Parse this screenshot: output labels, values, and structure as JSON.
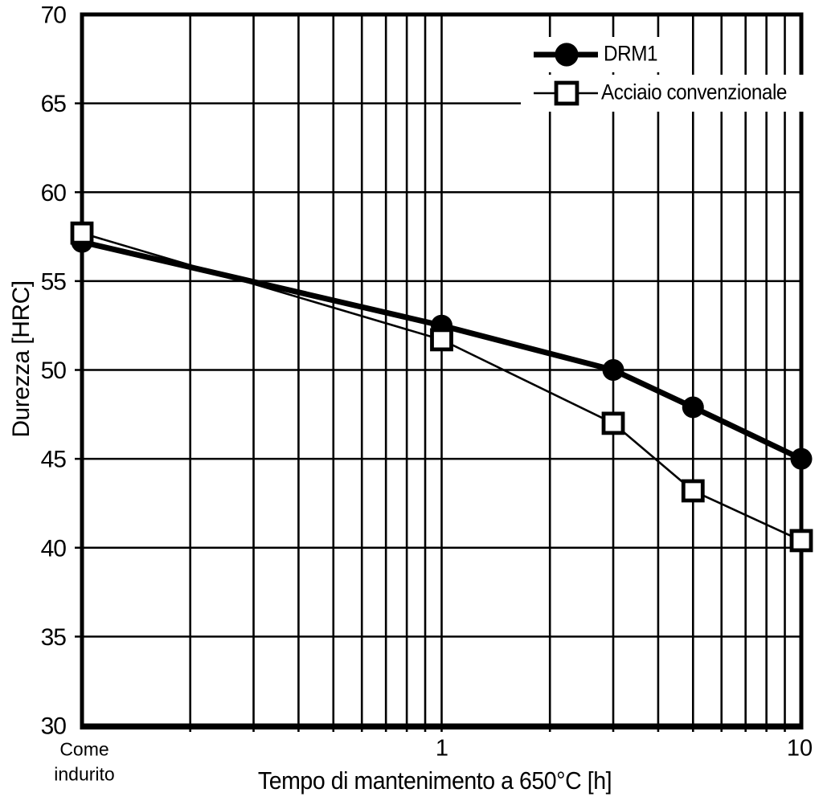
{
  "figure": {
    "background": "#ffffff",
    "foreground": "#000000"
  },
  "chart_data": {
    "type": "line",
    "title": "",
    "xlabel": "Tempo di mantenimento a 650°C [h]",
    "ylabel": "Durezza [HRC]",
    "x_scale": "log",
    "xlim": [
      0.1,
      10
    ],
    "ylim": [
      30,
      70
    ],
    "grid": true,
    "y_ticks": [
      30,
      35,
      40,
      45,
      50,
      55,
      60,
      65,
      70
    ],
    "y_gridlines": [
      35,
      40,
      45,
      50,
      55,
      60,
      65
    ],
    "x_gridlines": [
      0.2,
      0.3,
      0.4,
      0.5,
      0.6,
      0.7,
      0.8,
      0.9,
      1,
      2,
      3,
      4,
      5,
      6,
      7,
      8,
      9
    ],
    "x_ticks": [
      {
        "value": 0.1,
        "label": "Come indurito",
        "label_lines": [
          "Come",
          "indurito"
        ]
      },
      {
        "value": 1,
        "label": "1"
      },
      {
        "value": 10,
        "label": "10"
      }
    ],
    "x": [
      0.1,
      1,
      3,
      5,
      10
    ],
    "series": [
      {
        "name": "DRM1",
        "marker": "filled-circle",
        "line_width": 7,
        "color": "#000000",
        "values": [
          57.2,
          52.5,
          50.0,
          47.9,
          45.0
        ]
      },
      {
        "name": "Acciaio convenzionale",
        "marker": "open-square",
        "line_width": 2.6,
        "color": "#000000",
        "values": [
          57.7,
          51.7,
          47.0,
          43.2,
          40.4
        ]
      }
    ],
    "legend": {
      "position": "top-right-inside",
      "entries": [
        "DRM1",
        "Acciaio convenzionale"
      ]
    },
    "colors": {
      "foreground": "#000000",
      "background": "#ffffff"
    }
  }
}
